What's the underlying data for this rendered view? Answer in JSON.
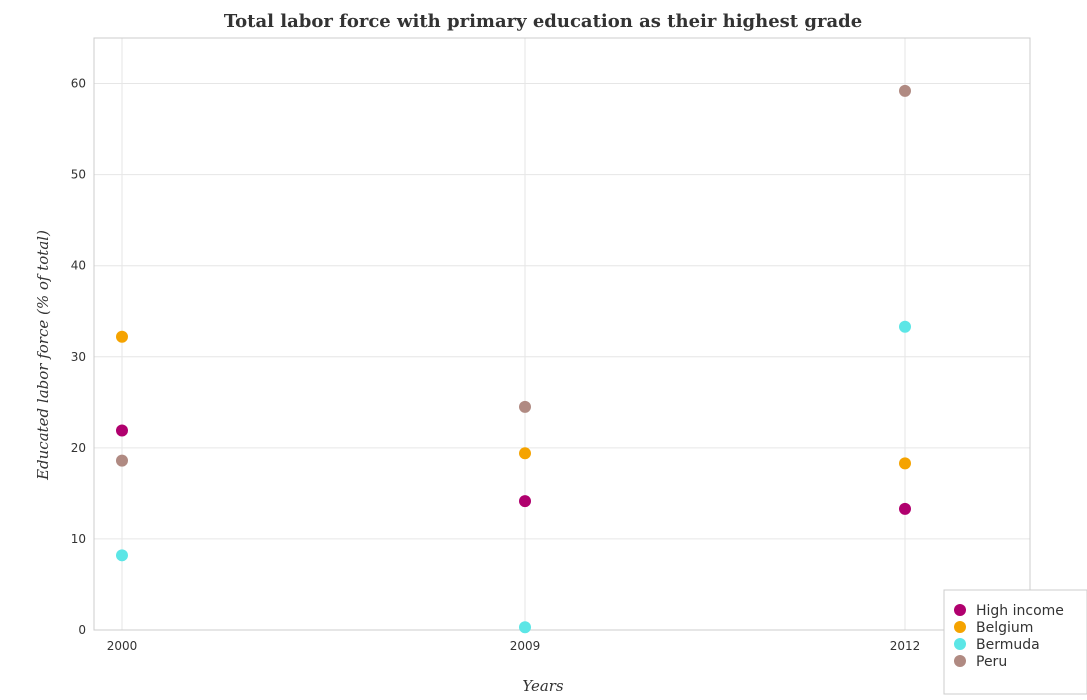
{
  "chart_data": {
    "type": "scatter",
    "title": "Total labor force with primary education as their highest grade",
    "xlabel": "Years",
    "ylabel": "Educated labor force (% of total)",
    "categories": [
      "2000",
      "2009",
      "2012"
    ],
    "ylim": [
      0,
      65
    ],
    "yticks": [
      0,
      10,
      20,
      30,
      40,
      50,
      60
    ],
    "grid": true,
    "legend_position": "bottom-right",
    "series": [
      {
        "name": "High income",
        "color": "#b0006e",
        "values": [
          21.9,
          14.15,
          13.3
        ]
      },
      {
        "name": "Belgium",
        "color": "#f5a300",
        "values": [
          32.2,
          19.4,
          18.3
        ]
      },
      {
        "name": "Bermuda",
        "color": "#5ce6e6",
        "values": [
          8.2,
          0.3,
          33.3
        ]
      },
      {
        "name": "Peru",
        "color": "#b08a82",
        "values": [
          18.6,
          24.5,
          59.2
        ]
      }
    ]
  }
}
